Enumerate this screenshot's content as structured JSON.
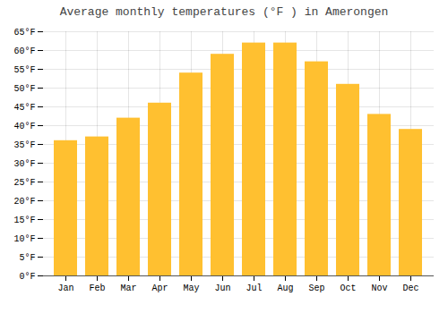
{
  "chart_data": {
    "type": "bar",
    "title": "Average monthly temperatures (°F ) in Amerongen",
    "categories": [
      "Jan",
      "Feb",
      "Mar",
      "Apr",
      "May",
      "Jun",
      "Jul",
      "Aug",
      "Sep",
      "Oct",
      "Nov",
      "Dec"
    ],
    "values": [
      36,
      37,
      42,
      46,
      54,
      59,
      62,
      62,
      57,
      51,
      43,
      39
    ],
    "color": "#FFC030",
    "ylim": [
      0,
      65
    ],
    "yticks": [
      {
        "value": 0,
        "label": "0°F"
      },
      {
        "value": 5,
        "label": "5°F"
      },
      {
        "value": 10,
        "label": "10°F"
      },
      {
        "value": 15,
        "label": "15°F"
      },
      {
        "value": 20,
        "label": "20°F"
      },
      {
        "value": 25,
        "label": "25°F"
      },
      {
        "value": 30,
        "label": "30°F"
      },
      {
        "value": 35,
        "label": "35°F"
      },
      {
        "value": 40,
        "label": "40°F"
      },
      {
        "value": 45,
        "label": "45°F"
      },
      {
        "value": 50,
        "label": "50°F"
      },
      {
        "value": 55,
        "label": "55°F"
      },
      {
        "value": 60,
        "label": "60°F"
      },
      {
        "value": 65,
        "label": "65°F"
      }
    ],
    "grid": true
  }
}
